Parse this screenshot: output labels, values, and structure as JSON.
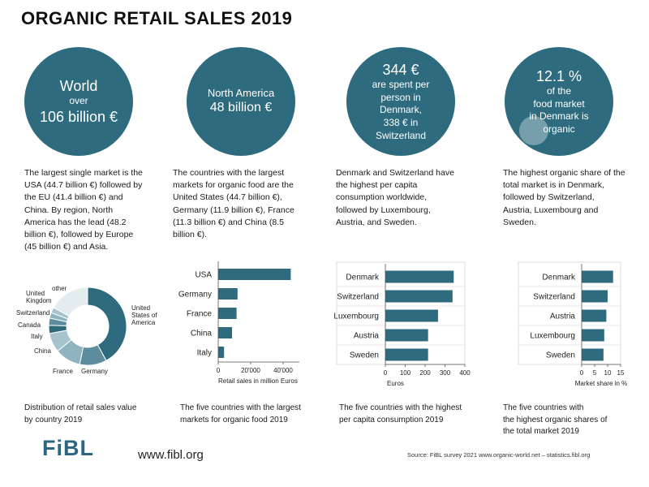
{
  "header": {
    "title": "ORGANIC RETAIL SALES 2019"
  },
  "circles": [
    {
      "lines": [
        "World",
        "over",
        "106 billion €"
      ]
    },
    {
      "lines": [
        "North America",
        "48 billion €"
      ]
    },
    {
      "lines": [
        "344 €",
        "are spent per",
        "person in",
        "Denmark,",
        "338 € in",
        "Switzerland"
      ]
    },
    {
      "lines": [
        "12.1 %",
        "of  the",
        "food market",
        "in Denmark is",
        "organic"
      ]
    }
  ],
  "descriptions": [
    [
      "The largest single market is the",
      "USA (44.7 billion €) followed by",
      "the EU (41.4 billion €) and",
      "China. By region, North",
      "America has the lead (48.2",
      "billion €), followed by Europe",
      "(45 billion €) and Asia."
    ],
    [
      "The countries with the largest",
      "markets for organic food are the",
      "United States (44.7 billion €),",
      "Germany (11.9 billion €), France",
      "(11.3 billion €) and China (8.5",
      "billion €)."
    ],
    [
      "Denmark and Switzerland have",
      "the highest per capita",
      "consumption worldwide,",
      "followed by Luxembourg,",
      "Austria, and Sweden."
    ],
    [
      "The highest organic share of the",
      "total market is in Denmark,",
      "followed by Switzerland,",
      "Austria, Luxembourg and",
      "Sweden."
    ]
  ],
  "captions": [
    [
      "Distribution of retail sales value",
      "by country 2019"
    ],
    [
      "The five countries with the largest",
      "markets for organic food 2019"
    ],
    [
      "The five countries with the highest",
      "per capita consumption 2019"
    ],
    [
      "The five countries with",
      "the highest organic shares of",
      "the total market 2019"
    ]
  ],
  "footer": {
    "logo": "FiBL",
    "url": "www.fibl.org",
    "source": "Source: FiBL survey 2021  www.organic-world.net – statistics.fibl.org"
  },
  "colors": {
    "accent": "#2e6b7e",
    "bar": "#2e6b7e"
  },
  "chart_data": [
    {
      "type": "pie",
      "variant": "donut",
      "slices": [
        {
          "label": "United States of America",
          "label_lines": [
            "United",
            "States of",
            "America"
          ],
          "value": 42.1,
          "color": "#2e6b7e"
        },
        {
          "label": "Germany",
          "label_lines": [
            "Germany"
          ],
          "value": 11.2,
          "color": "#5d8c9e"
        },
        {
          "label": "France",
          "label_lines": [
            "France"
          ],
          "value": 10.7,
          "color": "#8fb3c0"
        },
        {
          "label": "China",
          "label_lines": [
            "China"
          ],
          "value": 8.0,
          "color": "#a7c3cd"
        },
        {
          "label": "Italy",
          "label_lines": [
            "Italy"
          ],
          "value": 3.4,
          "color": "#2e6b7e"
        },
        {
          "label": "Canada",
          "label_lines": [
            "Canada"
          ],
          "value": 3.0,
          "color": "#5d8c9e"
        },
        {
          "label": "Switzerland",
          "label_lines": [
            "Switzerland"
          ],
          "value": 2.3,
          "color": "#8fb3c0"
        },
        {
          "label": "United Kingdom",
          "label_lines": [
            "United",
            "Kingdom"
          ],
          "value": 2.3,
          "color": "#a7c3cd"
        },
        {
          "label": "other",
          "label_lines": [
            "other"
          ],
          "value": 17.0,
          "color": "#e3ecef"
        }
      ]
    },
    {
      "type": "bar",
      "orientation": "horizontal",
      "categories": [
        "USA",
        "Germany",
        "France",
        "China",
        "Italy"
      ],
      "values": [
        44700,
        11900,
        11300,
        8500,
        3600
      ],
      "xlim": [
        0,
        50000
      ],
      "xticks": [
        0,
        20000,
        40000
      ],
      "xtick_labels": [
        "0",
        "20'000",
        "40'000"
      ],
      "xlabel": "Retail sales in million Euros",
      "grid": false
    },
    {
      "type": "bar",
      "orientation": "horizontal",
      "categories": [
        "Denmark",
        "Switzerland",
        "Luxembourg",
        "Austria",
        "Sweden"
      ],
      "values": [
        344,
        338,
        265,
        215,
        215
      ],
      "xlim": [
        0,
        400
      ],
      "xticks": [
        0,
        100,
        200,
        300,
        400
      ],
      "xtick_labels": [
        "0",
        "100",
        "200",
        "300",
        "400"
      ],
      "xlabel": "Euros",
      "grid": false
    },
    {
      "type": "bar",
      "orientation": "horizontal",
      "categories": [
        "Denmark",
        "Switzerland",
        "Austria",
        "Luxembourg",
        "Sweden"
      ],
      "values": [
        12.1,
        10.0,
        9.5,
        8.7,
        8.4
      ],
      "xlim": [
        0,
        15
      ],
      "xticks": [
        0,
        5,
        10,
        15
      ],
      "xtick_labels": [
        "0",
        "5",
        "10",
        "15"
      ],
      "xlabel": "Market share in %",
      "grid": false
    }
  ]
}
